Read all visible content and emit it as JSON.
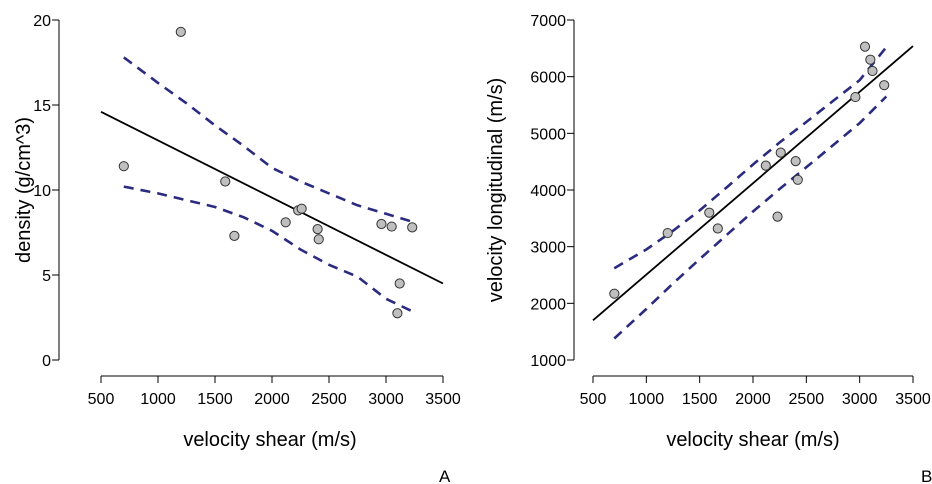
{
  "chart_data": [
    {
      "type": "scatter",
      "panel_label": "A",
      "title": "",
      "xlabel": "velocity shear (m/s)",
      "ylabel": "density (g/cm^3)",
      "xlim": [
        500,
        3500
      ],
      "ylim": [
        0,
        20
      ],
      "xticks": [
        500,
        1000,
        1500,
        2000,
        2500,
        3000,
        3500
      ],
      "yticks": [
        0,
        5,
        10,
        15,
        20
      ],
      "grid": false,
      "series": [
        {
          "role": "observations",
          "marker": "circle",
          "color": "#bfbfbf",
          "x": [
            700,
            1200,
            1590,
            1670,
            2120,
            2230,
            2260,
            2400,
            2410,
            2960,
            3050,
            3100,
            3120,
            3230
          ],
          "y": [
            11.4,
            19.3,
            10.5,
            7.3,
            8.1,
            8.8,
            8.9,
            7.7,
            7.1,
            8.0,
            7.85,
            2.75,
            4.5,
            7.8
          ]
        },
        {
          "role": "fit",
          "style": "solid",
          "color": "#000000",
          "x": [
            500,
            3500
          ],
          "y": [
            14.6,
            4.5
          ]
        },
        {
          "role": "upper-band",
          "style": "dashed",
          "color": "#2b2b7f",
          "x": [
            700,
            1000,
            1250,
            1500,
            1750,
            2000,
            2250,
            2500,
            2750,
            3000,
            3250
          ],
          "y": [
            17.8,
            16.3,
            15.1,
            13.8,
            12.6,
            11.3,
            10.5,
            9.8,
            9.1,
            8.6,
            8.1
          ]
        },
        {
          "role": "lower-band",
          "style": "dashed",
          "color": "#2b2b7f",
          "x": [
            700,
            1000,
            1250,
            1500,
            1750,
            2000,
            2250,
            2500,
            2750,
            3000,
            3250
          ],
          "y": [
            10.2,
            9.8,
            9.4,
            9.0,
            8.4,
            7.6,
            6.5,
            5.6,
            4.9,
            3.6,
            2.8
          ]
        }
      ]
    },
    {
      "type": "scatter",
      "panel_label": "B",
      "title": "",
      "xlabel": "velocity shear (m/s)",
      "ylabel": "velocity longitudinal (m/s)",
      "xlim": [
        500,
        3500
      ],
      "ylim": [
        1000,
        7000
      ],
      "xticks": [
        500,
        1000,
        1500,
        2000,
        2500,
        3000,
        3500
      ],
      "yticks": [
        1000,
        2000,
        3000,
        4000,
        5000,
        6000,
        7000
      ],
      "grid": false,
      "series": [
        {
          "role": "observations",
          "marker": "circle",
          "color": "#bfbfbf",
          "x": [
            700,
            1200,
            1590,
            1670,
            2120,
            2230,
            2260,
            2400,
            2420,
            2960,
            3050,
            3100,
            3120,
            3230
          ],
          "y": [
            2170,
            3240,
            3600,
            3320,
            4430,
            3530,
            4660,
            4510,
            4180,
            5640,
            6530,
            6300,
            6100,
            5850
          ]
        },
        {
          "role": "fit",
          "style": "solid",
          "color": "#000000",
          "x": [
            500,
            3500
          ],
          "y": [
            1700,
            6540
          ]
        },
        {
          "role": "upper-band",
          "style": "dashed",
          "color": "#2b2b7f",
          "x": [
            700,
            1000,
            1250,
            1500,
            1750,
            2000,
            2250,
            2500,
            2750,
            3000,
            3250
          ],
          "y": [
            2620,
            2950,
            3280,
            3640,
            4040,
            4450,
            4840,
            5200,
            5570,
            5940,
            6520
          ]
        },
        {
          "role": "lower-band",
          "style": "dashed",
          "color": "#2b2b7f",
          "x": [
            700,
            1000,
            1250,
            1500,
            1750,
            2000,
            2250,
            2500,
            2750,
            3000,
            3250
          ],
          "y": [
            1380,
            1900,
            2350,
            2780,
            3200,
            3620,
            4020,
            4400,
            4790,
            5180,
            5650
          ]
        }
      ]
    }
  ]
}
